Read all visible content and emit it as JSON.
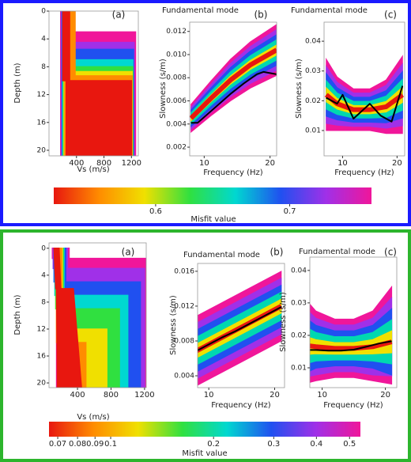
{
  "chart_data": [
    {
      "type": "profile",
      "panel_label": "(a)",
      "xlabel": "Vs (m/s)",
      "ylabel": "Depth (m)",
      "xlim": [
        0,
        1300
      ],
      "xticks": [
        400,
        800,
        1200
      ],
      "ylim": [
        0,
        20.8
      ],
      "yticks": [
        0,
        4,
        8,
        12,
        16,
        20
      ],
      "invert_y": true,
      "bands": [
        {
          "color": "#f0169a",
          "depth": [
            0,
            3,
            3,
            21
          ],
          "vs_min": [
            170,
            170,
            170,
            170
          ],
          "vs_max": [
            300,
            300,
            1260,
            1260
          ]
        },
        {
          "color": "#a030e8",
          "depth": [
            0,
            4.5,
            4.5,
            21
          ],
          "vs_min": [
            180,
            180,
            180,
            180
          ],
          "vs_max": [
            320,
            320,
            1240,
            1240
          ]
        },
        {
          "color": "#2050f0",
          "depth": [
            0,
            5.5,
            5.5,
            21
          ],
          "vs_min": [
            190,
            190,
            190,
            190
          ],
          "vs_max": [
            330,
            330,
            1230,
            1230
          ]
        },
        {
          "color": "#00d8d0",
          "depth": [
            0,
            7,
            7,
            21
          ],
          "vs_min": [
            200,
            200,
            200,
            200
          ],
          "vs_max": [
            340,
            340,
            1220,
            1220
          ]
        },
        {
          "color": "#30e040",
          "depth": [
            0,
            8,
            8,
            21
          ],
          "vs_min": [
            210,
            210,
            210,
            210
          ],
          "vs_max": [
            350,
            350,
            1220,
            1220
          ]
        },
        {
          "color": "#f0e000",
          "depth": [
            0,
            8.7,
            8.7,
            21
          ],
          "vs_min": [
            220,
            220,
            220,
            220
          ],
          "vs_max": [
            360,
            360,
            1210,
            1210
          ]
        },
        {
          "color": "#ff8c00",
          "depth": [
            0,
            9.3,
            9.3,
            21
          ],
          "vs_min": [
            230,
            230,
            230,
            230
          ],
          "vs_max": [
            380,
            380,
            1210,
            1210
          ]
        },
        {
          "color": "#e8170f",
          "depth": [
            0,
            10,
            10,
            21
          ],
          "vs_min": [
            200,
            200,
            250,
            250
          ],
          "vs_max": [
            300,
            300,
            1200,
            1200
          ]
        }
      ]
    },
    {
      "type": "dispersion",
      "title": "Fundamental mode",
      "panel_label": "(b)",
      "xlabel": "Frequency (Hz)",
      "ylabel": "Slowness (s/m)",
      "xlim": [
        7.8,
        21
      ],
      "xticks": [
        10,
        20
      ],
      "ylim": [
        0.00125,
        0.0128
      ],
      "yticks": [
        0.002,
        0.004,
        0.006,
        0.008,
        {
          "value": 0.01,
          "label": "0.010"
        },
        0.012
      ],
      "x": [
        8,
        11,
        14,
        17,
        21
      ],
      "bands": [
        {
          "color": "#f0169a",
          "lower": [
            0.0033,
            0.0047,
            0.006,
            0.0071,
            0.0082
          ],
          "upper": [
            0.0057,
            0.0077,
            0.0096,
            0.0111,
            0.0126
          ]
        },
        {
          "color": "#a030e8",
          "lower": [
            0.00354,
            0.005,
            0.00636,
            0.0075,
            0.00864
          ],
          "upper": [
            0.00546,
            0.0074,
            0.00924,
            0.0107,
            0.01216
          ]
        },
        {
          "color": "#2050f0",
          "lower": [
            0.00378,
            0.0053,
            0.00672,
            0.0079,
            0.00908
          ],
          "upper": [
            0.00522,
            0.0071,
            0.00888,
            0.0103,
            0.01172
          ]
        },
        {
          "color": "#00d8b0",
          "lower": [
            0.00402,
            0.0056,
            0.00708,
            0.0083,
            0.00952
          ],
          "upper": [
            0.00498,
            0.0068,
            0.00852,
            0.0099,
            0.01128
          ]
        },
        {
          "color": "#f0e000",
          "lower": [
            0.00426,
            0.0059,
            0.00744,
            0.0087,
            0.00996
          ],
          "upper": [
            0.00474,
            0.0065,
            0.00816,
            0.0095,
            0.01084
          ]
        }
      ],
      "series": [
        {
          "color": "#e8170f",
          "x": [
            8,
            11,
            14,
            17,
            21
          ],
          "values": [
            0.0045,
            0.0062,
            0.0078,
            0.0091,
            0.0104
          ]
        },
        {
          "color": "#000000",
          "x": [
            8,
            9,
            10,
            12,
            14,
            16,
            18,
            19,
            20,
            21
          ],
          "values": [
            0.0041,
            0.0041,
            0.0046,
            0.0056,
            0.0066,
            0.0075,
            0.0083,
            0.0085,
            0.0084,
            0.0083
          ]
        }
      ]
    },
    {
      "type": "dispersion",
      "title": "Fundamental mode",
      "panel_label": "(c)",
      "xlabel": "Frequency (Hz)",
      "ylabel": "Slowness (s/m)",
      "xlim": [
        6.6,
        21.4
      ],
      "xticks": [
        10,
        20
      ],
      "ylim": [
        0.0015,
        0.0464
      ],
      "yticks": [
        0.01,
        0.02,
        0.03,
        0.04
      ],
      "x": [
        7,
        9,
        12,
        15,
        18,
        21
      ],
      "bands": [
        {
          "color": "#f0169a",
          "lower": [
            0.01,
            0.01,
            0.01,
            0.01,
            0.009,
            0.009
          ],
          "upper": [
            0.034,
            0.028,
            0.024,
            0.024,
            0.027,
            0.035
          ]
        },
        {
          "color": "#a030e8",
          "lower": [
            0.0124,
            0.0118,
            0.0114,
            0.0114,
            0.0108,
            0.0116
          ],
          "upper": [
            0.0316,
            0.0262,
            0.0226,
            0.0226,
            0.0252,
            0.0324
          ]
        },
        {
          "color": "#2050f0",
          "lower": [
            0.0148,
            0.0136,
            0.0128,
            0.0128,
            0.0126,
            0.0142
          ],
          "upper": [
            0.0292,
            0.0244,
            0.0212,
            0.0212,
            0.0234,
            0.0298
          ]
        },
        {
          "color": "#00d8b0",
          "lower": [
            0.0172,
            0.0154,
            0.0142,
            0.0142,
            0.0144,
            0.0168
          ],
          "upper": [
            0.0268,
            0.0226,
            0.0198,
            0.0198,
            0.0216,
            0.0272
          ]
        },
        {
          "color": "#f0e000",
          "lower": [
            0.0196,
            0.0172,
            0.0156,
            0.0156,
            0.0162,
            0.0194
          ],
          "upper": [
            0.0244,
            0.0208,
            0.0184,
            0.0184,
            0.0198,
            0.0246
          ]
        }
      ],
      "series": [
        {
          "color": "#e8170f",
          "x": [
            7,
            9,
            12,
            15,
            18,
            21
          ],
          "values": [
            0.022,
            0.019,
            0.017,
            0.017,
            0.018,
            0.022
          ]
        },
        {
          "color": "#000000",
          "x": [
            7,
            9,
            10,
            12,
            15,
            17,
            19,
            20,
            21
          ],
          "values": [
            0.021,
            0.019,
            0.022,
            0.014,
            0.019,
            0.015,
            0.013,
            0.019,
            0.025
          ]
        }
      ]
    },
    {
      "type": "colorbar",
      "label": "Misfit value",
      "log": false,
      "xlim": [
        0.524,
        0.761
      ],
      "xticks": [
        0.6,
        0.7
      ],
      "colors": [
        "#e8170f",
        "#ff8c00",
        "#f0e000",
        "#30e040",
        "#00d8d0",
        "#2050f0",
        "#a030e8",
        "#f0169a"
      ]
    },
    {
      "type": "profile",
      "panel_label": "(a)",
      "xlabel": "Vs (m/s)",
      "ylabel": "Depth (m)",
      "xlim": [
        60,
        1220
      ],
      "xticks": [
        400,
        800,
        1200
      ],
      "ylim": [
        -0.8,
        20.7
      ],
      "yticks": [
        0,
        4,
        8,
        12,
        16,
        20
      ],
      "invert_y": true,
      "bands": [
        {
          "color": "#f0169a",
          "depth": [
            0,
            1.5,
            1.5,
            21
          ],
          "vs_min": [
            100,
            100,
            150,
            150
          ],
          "vs_max": [
            300,
            300,
            1230,
            1230
          ]
        },
        {
          "color": "#a030e8",
          "depth": [
            0,
            3,
            3,
            21
          ],
          "vs_min": [
            110,
            110,
            160,
            160
          ],
          "vs_max": [
            280,
            280,
            1200,
            1200
          ]
        },
        {
          "color": "#2050f0",
          "depth": [
            0,
            5,
            5,
            21
          ],
          "vs_min": [
            120,
            120,
            170,
            170
          ],
          "vs_max": [
            260,
            260,
            1150,
            1150
          ]
        },
        {
          "color": "#00d8d0",
          "depth": [
            0,
            7,
            7,
            21
          ],
          "vs_min": [
            130,
            130,
            180,
            180
          ],
          "vs_max": [
            240,
            240,
            1000,
            1000
          ]
        },
        {
          "color": "#30e040",
          "depth": [
            0,
            9,
            9,
            21
          ],
          "vs_min": [
            140,
            140,
            190,
            190
          ],
          "vs_max": [
            230,
            230,
            900,
            900
          ]
        },
        {
          "color": "#f0e000",
          "depth": [
            0,
            12,
            12,
            21
          ],
          "vs_min": [
            150,
            150,
            200,
            200
          ],
          "vs_max": [
            220,
            220,
            750,
            750
          ]
        },
        {
          "color": "#ff8c00",
          "depth": [
            0,
            14,
            14,
            21
          ],
          "vs_min": [
            150,
            150,
            200,
            200
          ],
          "vs_max": [
            210,
            210,
            500,
            500
          ]
        },
        {
          "color": "#e8170f",
          "depth": [
            0,
            6,
            6,
            21
          ],
          "vs_min": [
            120,
            140,
            150,
            160
          ],
          "vs_max": [
            180,
            200,
            350,
            450
          ]
        }
      ]
    },
    {
      "type": "dispersion",
      "title": "Fundamental mode",
      "panel_label": "(b)",
      "xlabel": "Frequency (Hz)",
      "ylabel": "Slowness (s/m)",
      "xlim": [
        8.3,
        21.5
      ],
      "xticks": [
        10,
        20
      ],
      "ylim": [
        0.00264,
        0.0169
      ],
      "yticks": [
        0.004,
        0.008,
        0.012,
        0.016
      ],
      "x": [
        8,
        12,
        16,
        21
      ],
      "bands": [
        {
          "color": "#f0169a",
          "lower": [
            0.0028,
            0.0044,
            0.006,
            0.008
          ],
          "upper": [
            0.0108,
            0.0124,
            0.014,
            0.016
          ]
        },
        {
          "color": "#a030e8",
          "lower": [
            0.0036,
            0.0052,
            0.0068,
            0.0088
          ],
          "upper": [
            0.01,
            0.0116,
            0.0132,
            0.0152
          ]
        },
        {
          "color": "#2050f0",
          "lower": [
            0.0044,
            0.006,
            0.0076,
            0.0096
          ],
          "upper": [
            0.0092,
            0.0108,
            0.0124,
            0.0144
          ]
        },
        {
          "color": "#00d8b0",
          "lower": [
            0.0052,
            0.0068,
            0.0084,
            0.0104
          ],
          "upper": [
            0.0084,
            0.01,
            0.0116,
            0.0136
          ]
        },
        {
          "color": "#f0e000",
          "lower": [
            0.006,
            0.0076,
            0.0092,
            0.0112
          ],
          "upper": [
            0.0076,
            0.0092,
            0.0108,
            0.0128
          ]
        }
      ],
      "series": [
        {
          "color": "#e8170f",
          "x": [
            8,
            12,
            16,
            21
          ],
          "values": [
            0.0068,
            0.0084,
            0.01,
            0.012
          ]
        },
        {
          "color": "#000000",
          "x": [
            8,
            10,
            12,
            14,
            16,
            18,
            20,
            21
          ],
          "values": [
            0.0068,
            0.0076,
            0.0084,
            0.0091,
            0.0099,
            0.0107,
            0.0115,
            0.0119
          ]
        }
      ]
    },
    {
      "type": "dispersion",
      "title": "Fundamental mode",
      "panel_label": "(c)",
      "xlabel": "Frequency (Hz)",
      "ylabel": "Slowness (s/m)",
      "xlim": [
        8.05,
        21.8
      ],
      "xticks": [
        10,
        20
      ],
      "ylim": [
        0.0039,
        0.0441
      ],
      "yticks": [
        0.01,
        0.02,
        0.03,
        0.04
      ],
      "x": [
        7,
        9,
        12,
        15,
        18,
        21
      ],
      "bands": [
        {
          "color": "#f0169a",
          "lower": [
            0.005,
            0.006,
            0.007,
            0.007,
            0.006,
            0.005
          ],
          "upper": [
            0.032,
            0.0275,
            0.025,
            0.025,
            0.0275,
            0.035
          ]
        },
        {
          "color": "#a030e8",
          "lower": [
            0.007,
            0.0078,
            0.0088,
            0.0088,
            0.0078,
            0.0075
          ],
          "upper": [
            0.029,
            0.0253,
            0.0232,
            0.0232,
            0.0253,
            0.0316
          ]
        },
        {
          "color": "#2050f0",
          "lower": [
            0.008,
            0.0099,
            0.0106,
            0.0106,
            0.0099,
            0.0078
          ],
          "upper": [
            0.026,
            0.0231,
            0.0214,
            0.0214,
            0.0231,
            0.0282
          ]
        },
        {
          "color": "#00d8b0",
          "lower": [
            0.011,
            0.0121,
            0.0124,
            0.0124,
            0.0121,
            0.0112
          ],
          "upper": [
            0.023,
            0.0209,
            0.0196,
            0.0196,
            0.0209,
            0.0248
          ]
        },
        {
          "color": "#f0e000",
          "lower": [
            0.014,
            0.0143,
            0.0142,
            0.0142,
            0.0143,
            0.0146
          ],
          "upper": [
            0.02,
            0.0187,
            0.0178,
            0.0178,
            0.0187,
            0.0214
          ]
        }
      ],
      "series": [
        {
          "color": "#e8170f",
          "x": [
            7,
            9,
            12,
            15,
            18,
            21
          ],
          "values": [
            0.017,
            0.0165,
            0.016,
            0.016,
            0.0165,
            0.018
          ]
        },
        {
          "color": "#000000",
          "x": [
            7,
            9,
            11,
            13,
            15,
            17,
            19,
            21
          ],
          "values": [
            0.0155,
            0.0155,
            0.0153,
            0.0153,
            0.0156,
            0.0165,
            0.0175,
            0.0182
          ]
        }
      ]
    },
    {
      "type": "colorbar",
      "label": "Misfit value",
      "log": true,
      "xlim": [
        0.066,
        0.538
      ],
      "xticks": [
        0.07,
        0.08,
        0.09,
        0.1,
        0.2,
        0.3,
        0.4,
        0.5
      ],
      "colors": [
        "#e8170f",
        "#ff8c00",
        "#f0e000",
        "#30e040",
        "#00d8d0",
        "#2050f0",
        "#a030e8",
        "#f0169a"
      ]
    }
  ]
}
